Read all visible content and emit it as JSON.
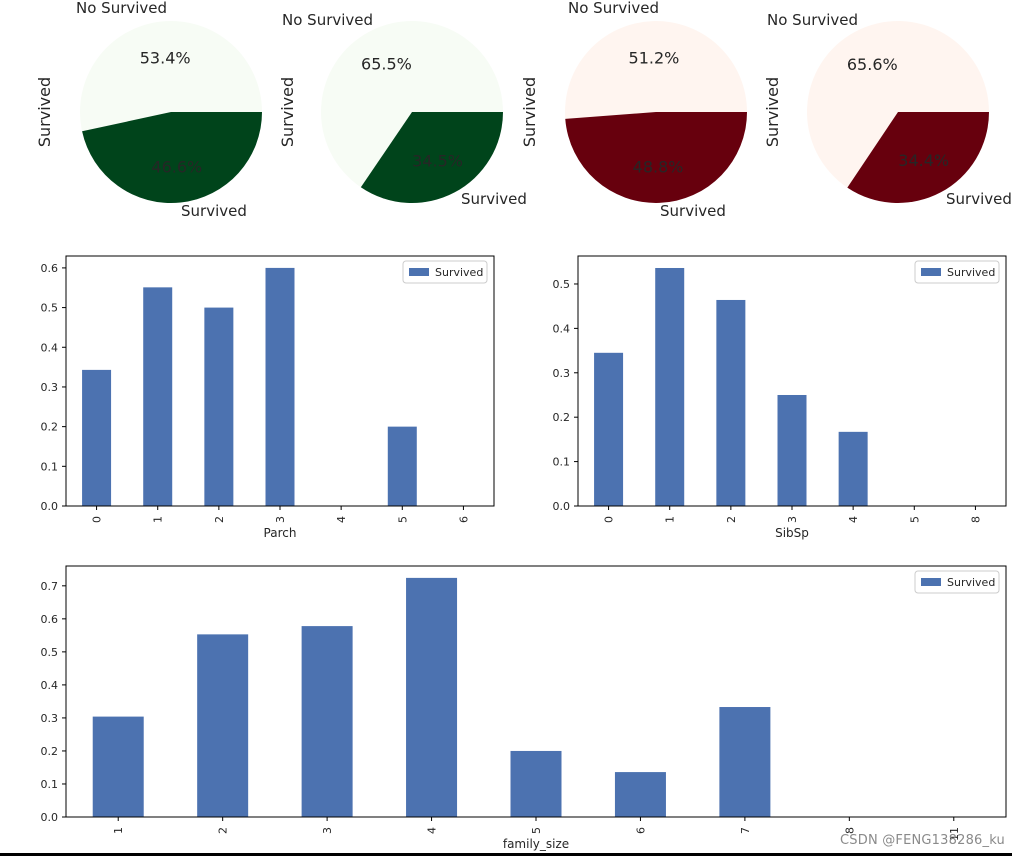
{
  "chart_data": [
    {
      "type": "pie",
      "ylabel": "Survived",
      "labels": [
        "No Survived",
        "Survived"
      ],
      "values": [
        53.4,
        46.6
      ],
      "pct_labels": [
        "53.4%",
        "46.6%"
      ],
      "colors": [
        "#f7fcf5",
        "#00441b"
      ]
    },
    {
      "type": "pie",
      "ylabel": "Survived",
      "labels": [
        "No Survived",
        "Survived"
      ],
      "values": [
        65.5,
        34.5
      ],
      "pct_labels": [
        "65.5%",
        "34.5%"
      ],
      "colors": [
        "#f7fcf5",
        "#00441b"
      ]
    },
    {
      "type": "pie",
      "ylabel": "Survived",
      "labels": [
        "No Survived",
        "Survived"
      ],
      "values": [
        51.2,
        48.8
      ],
      "pct_labels": [
        "51.2%",
        "48.8%"
      ],
      "colors": [
        "#fff5f0",
        "#67000d"
      ]
    },
    {
      "type": "pie",
      "ylabel": "Survived",
      "labels": [
        "No Survived",
        "Survived"
      ],
      "values": [
        65.6,
        34.4
      ],
      "pct_labels": [
        "65.6%",
        "34.4%"
      ],
      "colors": [
        "#fff5f0",
        "#67000d"
      ]
    },
    {
      "type": "bar",
      "xlabel": "Parch",
      "categories": [
        "0",
        "1",
        "2",
        "3",
        "4",
        "5",
        "6"
      ],
      "series": [
        {
          "name": "Survived",
          "values": [
            0.343,
            0.551,
            0.5,
            0.6,
            0.0,
            0.2,
            0.0
          ]
        }
      ],
      "ylim": [
        0,
        0.63
      ],
      "yticks": [
        0.0,
        0.1,
        0.2,
        0.3,
        0.4,
        0.5,
        0.6
      ],
      "ytick_labels": [
        "0.0",
        "0.1",
        "0.2",
        "0.3",
        "0.4",
        "0.5",
        "0.6"
      ],
      "legend": "top-right",
      "color": "#4c72b0"
    },
    {
      "type": "bar",
      "xlabel": "SibSp",
      "categories": [
        "0",
        "1",
        "2",
        "3",
        "4",
        "5",
        "8"
      ],
      "series": [
        {
          "name": "Survived",
          "values": [
            0.345,
            0.536,
            0.464,
            0.25,
            0.167,
            0.0,
            0.0
          ]
        }
      ],
      "ylim": [
        0,
        0.563
      ],
      "yticks": [
        0.0,
        0.1,
        0.2,
        0.3,
        0.4,
        0.5
      ],
      "ytick_labels": [
        "0.0",
        "0.1",
        "0.2",
        "0.3",
        "0.4",
        "0.5"
      ],
      "legend": "top-right",
      "color": "#4c72b0"
    },
    {
      "type": "bar",
      "xlabel": "family_size",
      "categories": [
        "1",
        "2",
        "3",
        "4",
        "5",
        "6",
        "7",
        "8",
        "11"
      ],
      "series": [
        {
          "name": "Survived",
          "values": [
            0.304,
            0.553,
            0.578,
            0.724,
            0.2,
            0.136,
            0.333,
            0.0,
            0.0
          ]
        }
      ],
      "ylim": [
        0,
        0.76
      ],
      "yticks": [
        0.0,
        0.1,
        0.2,
        0.3,
        0.4,
        0.5,
        0.6,
        0.7
      ],
      "ytick_labels": [
        "0.0",
        "0.1",
        "0.2",
        "0.3",
        "0.4",
        "0.5",
        "0.6",
        "0.7"
      ],
      "legend": "top-right",
      "color": "#4c72b0"
    }
  ],
  "watermark": "CSDN @FENG138286_ku"
}
